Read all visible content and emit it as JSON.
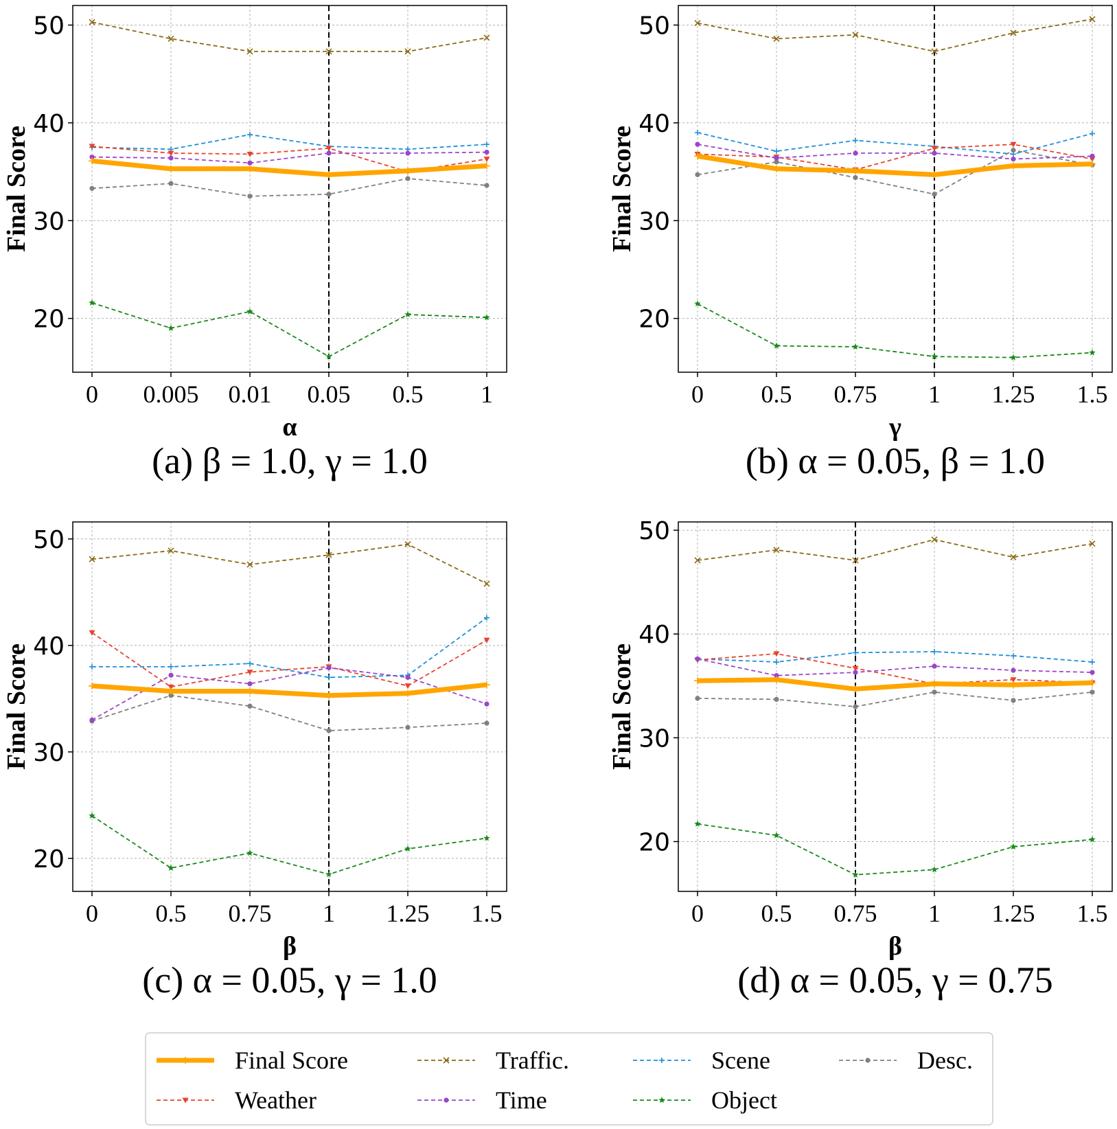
{
  "chart_data": [
    {
      "type": "line",
      "caption": "(a) β = 1.0, γ = 1.0",
      "xlabel": "α",
      "ylabel": "Final Score",
      "categories": [
        "0",
        "0.005",
        "0.01",
        "0.05",
        "0.5",
        "1"
      ],
      "ylim": [
        14.5,
        52
      ],
      "yticks": [
        20,
        30,
        40,
        50
      ],
      "grid": true,
      "vline_at": "0.05",
      "series": [
        {
          "name": "Final Score",
          "values": [
            36.1,
            35.3,
            35.3,
            34.7,
            35.1,
            35.6
          ]
        },
        {
          "name": "Traffic.",
          "values": [
            50.3,
            48.6,
            47.3,
            47.3,
            47.3,
            48.7
          ]
        },
        {
          "name": "Scene",
          "values": [
            37.5,
            37.3,
            38.8,
            37.6,
            37.3,
            37.8
          ]
        },
        {
          "name": "Desc.",
          "values": [
            33.3,
            33.8,
            32.5,
            32.7,
            34.3,
            33.6
          ]
        },
        {
          "name": "Weather",
          "values": [
            37.6,
            36.9,
            36.8,
            37.4,
            35.0,
            36.3
          ]
        },
        {
          "name": "Time",
          "values": [
            36.5,
            36.4,
            35.9,
            36.9,
            36.9,
            37.0
          ]
        },
        {
          "name": "Object",
          "values": [
            21.6,
            19.0,
            20.7,
            16.1,
            20.4,
            20.1
          ]
        }
      ]
    },
    {
      "type": "line",
      "caption": "(b) α = 0.05, β = 1.0",
      "xlabel": "γ",
      "ylabel": "Final Score",
      "categories": [
        "0",
        "0.5",
        "0.75",
        "1",
        "1.25",
        "1.5"
      ],
      "ylim": [
        14.5,
        52
      ],
      "yticks": [
        20,
        30,
        40,
        50
      ],
      "grid": true,
      "vline_at": "1",
      "series": [
        {
          "name": "Final Score",
          "values": [
            36.6,
            35.3,
            35.1,
            34.7,
            35.6,
            35.8
          ]
        },
        {
          "name": "Traffic.",
          "values": [
            50.2,
            48.6,
            49.0,
            47.3,
            49.2,
            50.6
          ]
        },
        {
          "name": "Scene",
          "values": [
            39.0,
            37.1,
            38.2,
            37.6,
            36.8,
            38.9
          ]
        },
        {
          "name": "Desc.",
          "values": [
            34.7,
            36.0,
            34.4,
            32.7,
            37.2,
            35.7
          ]
        },
        {
          "name": "Weather",
          "values": [
            36.8,
            36.5,
            35.2,
            37.4,
            37.8,
            36.3
          ]
        },
        {
          "name": "Time",
          "values": [
            37.8,
            36.4,
            36.9,
            36.9,
            36.3,
            36.6
          ]
        },
        {
          "name": "Object",
          "values": [
            21.5,
            17.2,
            17.1,
            16.1,
            16.0,
            16.5
          ]
        }
      ]
    },
    {
      "type": "line",
      "caption": "(c) α = 0.05, γ = 1.0",
      "xlabel": "β",
      "ylabel": "Final Score",
      "categories": [
        "0",
        "0.5",
        "0.75",
        "1",
        "1.25",
        "1.5"
      ],
      "ylim": [
        16.9,
        51.6
      ],
      "yticks": [
        20,
        30,
        40,
        50
      ],
      "grid": true,
      "vline_at": "1",
      "series": [
        {
          "name": "Final Score",
          "values": [
            36.2,
            35.7,
            35.7,
            35.3,
            35.5,
            36.3
          ]
        },
        {
          "name": "Traffic.",
          "values": [
            48.1,
            48.9,
            47.6,
            48.5,
            49.5,
            45.8
          ]
        },
        {
          "name": "Scene",
          "values": [
            38.0,
            38.0,
            38.3,
            37.0,
            37.2,
            42.6
          ]
        },
        {
          "name": "Desc.",
          "values": [
            32.9,
            35.3,
            34.3,
            32.0,
            32.3,
            32.7
          ]
        },
        {
          "name": "Weather",
          "values": [
            41.2,
            36.1,
            37.5,
            38.0,
            36.2,
            40.5
          ]
        },
        {
          "name": "Time",
          "values": [
            33.0,
            37.2,
            36.4,
            37.9,
            37.0,
            34.5
          ]
        },
        {
          "name": "Object",
          "values": [
            24.0,
            19.1,
            20.5,
            18.5,
            20.9,
            21.9
          ]
        }
      ]
    },
    {
      "type": "line",
      "caption": "(d) α = 0.05, γ = 0.75",
      "xlabel": "β",
      "ylabel": "Final Score",
      "categories": [
        "0",
        "0.5",
        "0.75",
        "1",
        "1.25",
        "1.5"
      ],
      "ylim": [
        15.2,
        50.8
      ],
      "yticks": [
        20,
        30,
        40,
        50
      ],
      "grid": true,
      "vline_at": "0.75",
      "series": [
        {
          "name": "Final Score",
          "values": [
            35.5,
            35.6,
            34.7,
            35.2,
            35.1,
            35.3
          ]
        },
        {
          "name": "Traffic.",
          "values": [
            47.1,
            48.1,
            47.1,
            49.1,
            47.4,
            48.7
          ]
        },
        {
          "name": "Scene",
          "values": [
            37.6,
            37.3,
            38.2,
            38.3,
            37.9,
            37.3
          ]
        },
        {
          "name": "Desc.",
          "values": [
            33.8,
            33.7,
            33.0,
            34.4,
            33.6,
            34.4
          ]
        },
        {
          "name": "Weather",
          "values": [
            37.5,
            38.1,
            36.7,
            35.2,
            35.6,
            35.3
          ]
        },
        {
          "name": "Time",
          "values": [
            37.6,
            36.0,
            36.3,
            36.9,
            36.5,
            36.3
          ]
        },
        {
          "name": "Object",
          "values": [
            21.7,
            20.6,
            16.8,
            17.3,
            19.5,
            20.2
          ]
        }
      ]
    }
  ],
  "legend": {
    "placement": "bottom-center",
    "items": [
      {
        "name": "Final Score",
        "color": "#FFA500",
        "marker": "plus",
        "style": "solid"
      },
      {
        "name": "Traffic.",
        "color": "#8B6914",
        "marker": "x",
        "style": "dashed"
      },
      {
        "name": "Scene",
        "color": "#1F8FD8",
        "marker": "plus",
        "style": "dashed"
      },
      {
        "name": "Desc.",
        "color": "#808080",
        "marker": "circle",
        "style": "dashed"
      },
      {
        "name": "Weather",
        "color": "#E8432E",
        "marker": "triangle-down",
        "style": "dashed"
      },
      {
        "name": "Time",
        "color": "#9B45C9",
        "marker": "circle",
        "style": "dashed"
      },
      {
        "name": "Object",
        "color": "#1A8A1A",
        "marker": "star",
        "style": "dashed"
      }
    ]
  }
}
